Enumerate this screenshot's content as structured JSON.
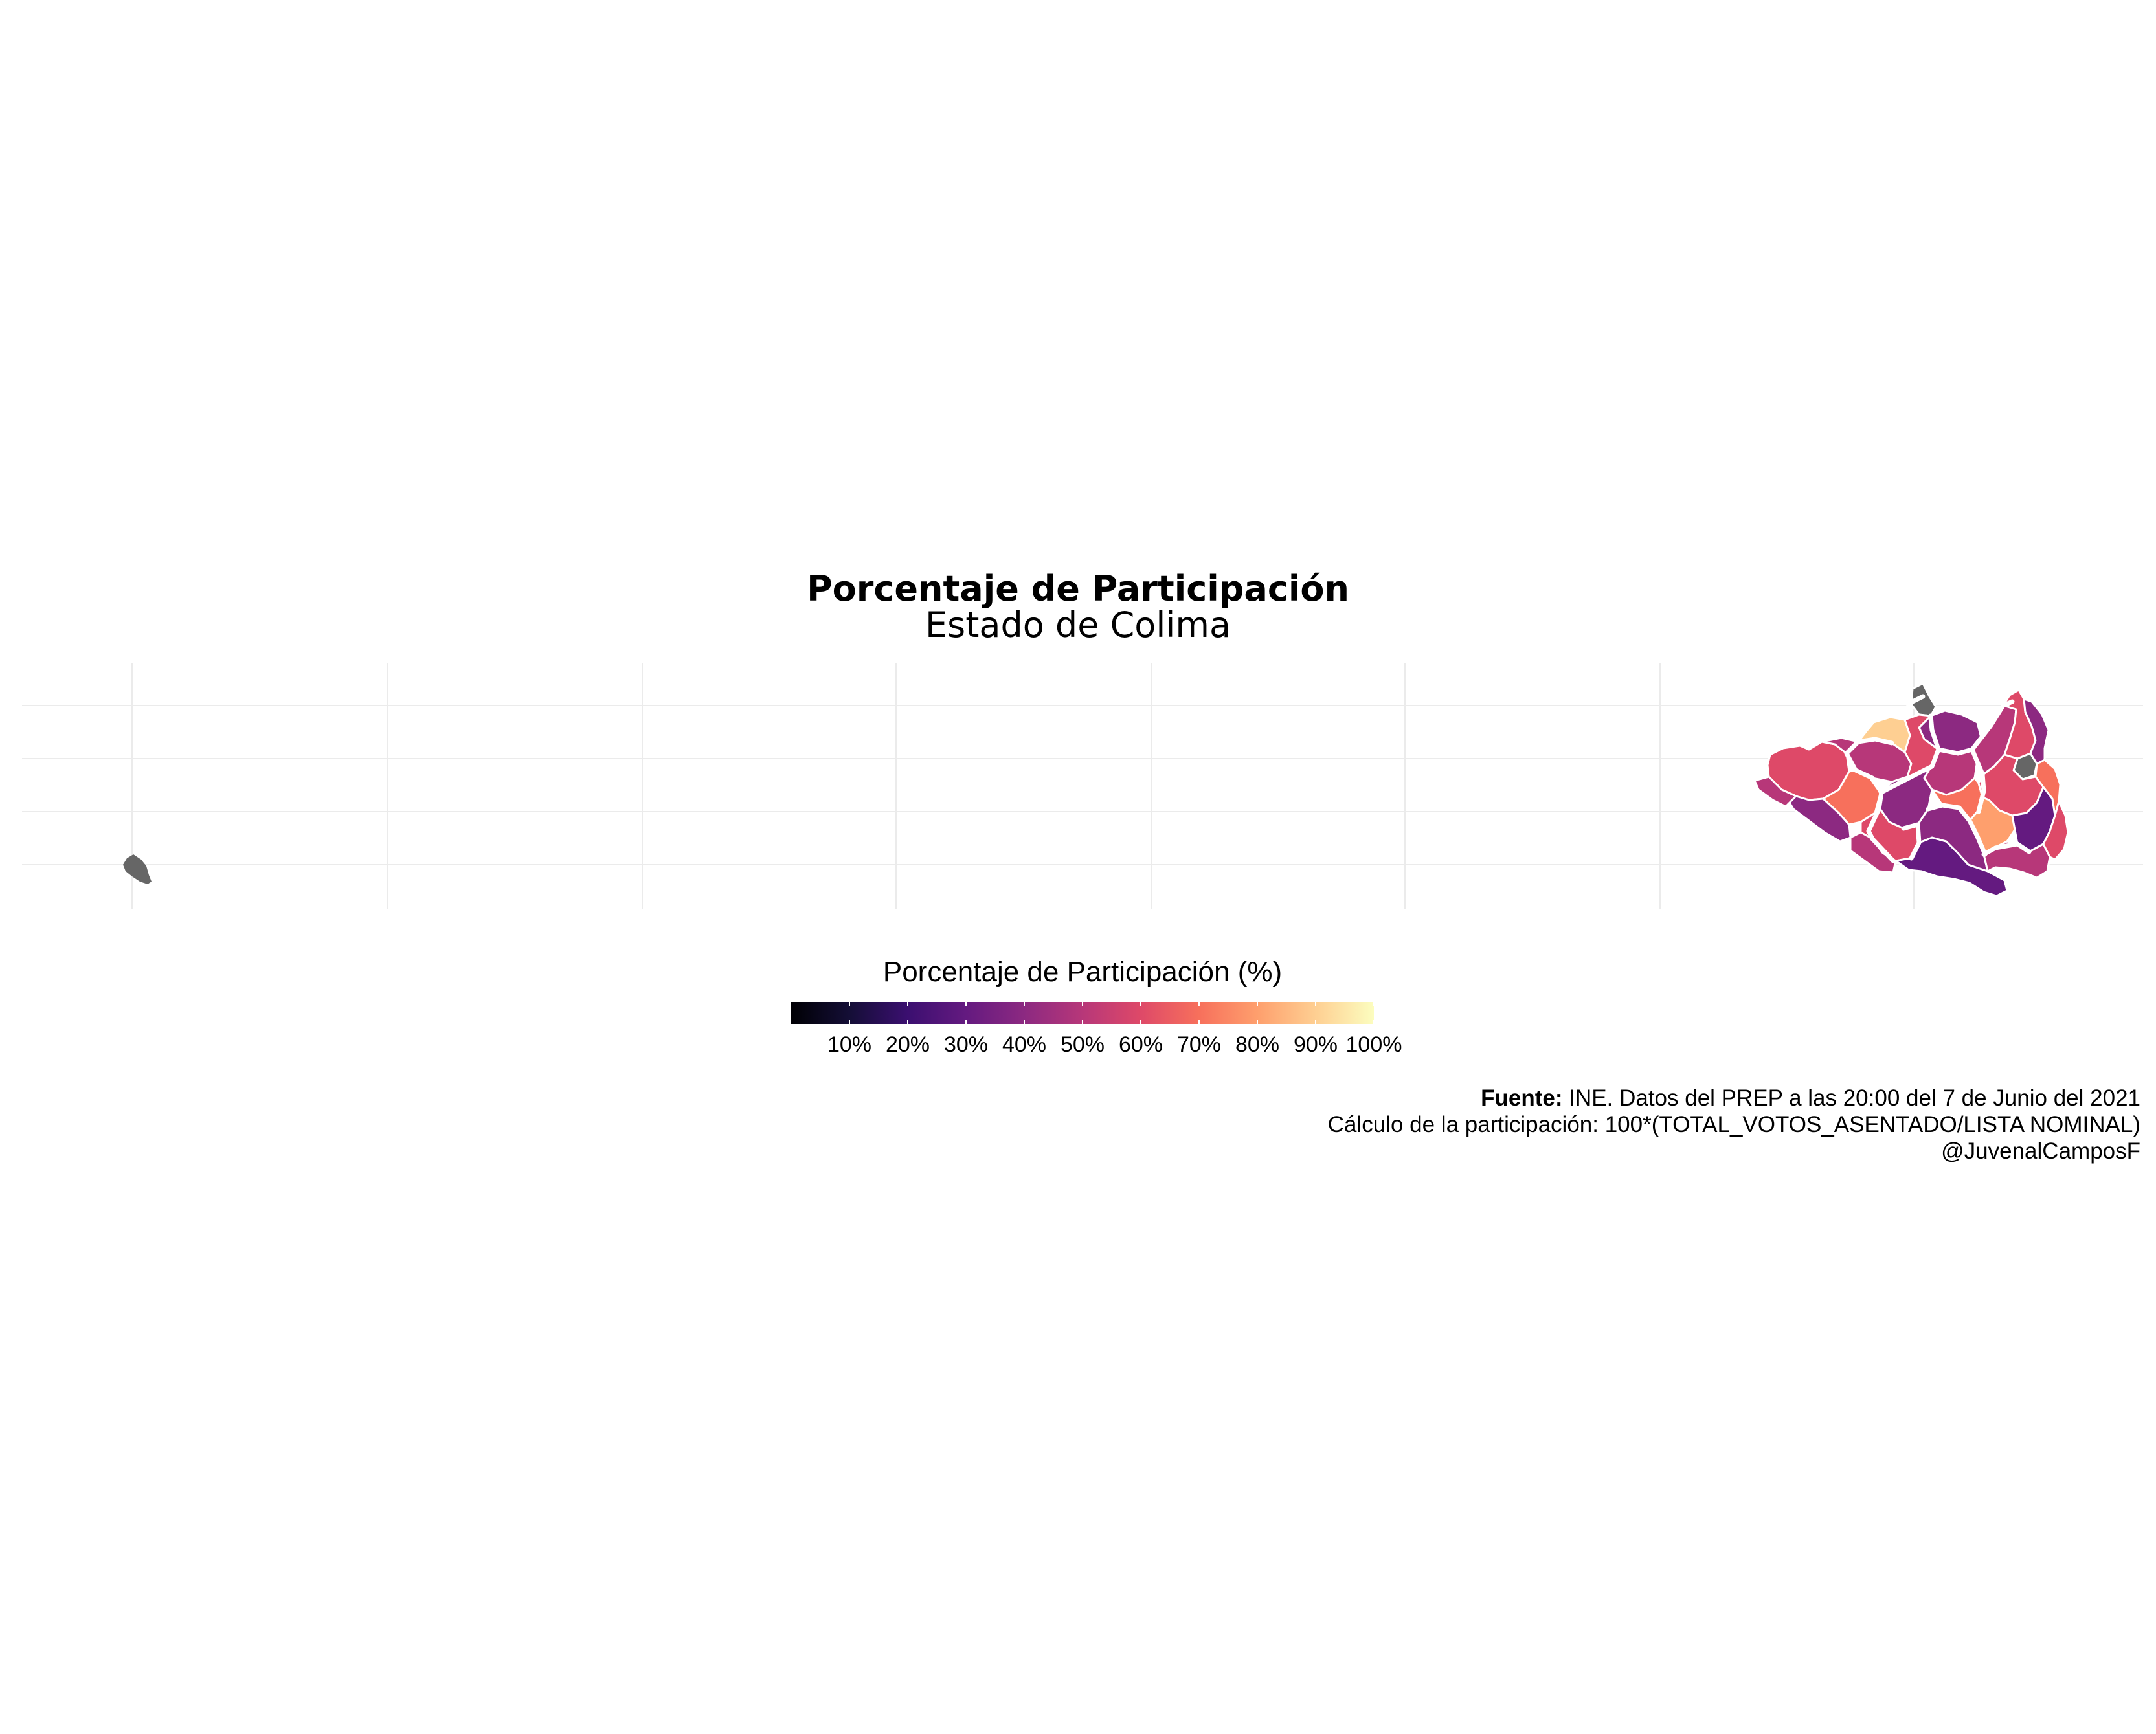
{
  "title": "Porcentaje de Participación",
  "subtitle": "Estado de Colima",
  "legend": {
    "title": "Porcentaje de Participación (%)",
    "ticks": [
      "10%",
      "20%",
      "30%",
      "40%",
      "50%",
      "60%",
      "70%",
      "80%",
      "90%",
      "100%"
    ],
    "range": [
      0,
      100
    ],
    "palette": [
      "#000004",
      "#140e36",
      "#3b0f70",
      "#641a80",
      "#8c2981",
      "#b73779",
      "#de4968",
      "#f7705c",
      "#fe9f6d",
      "#fecf92",
      "#fcfdbf"
    ]
  },
  "caption": {
    "source_label": "Fuente:",
    "source_text": " INE. Datos del PREP a las 20:00 del 7 de Junio del 2021",
    "calc_text": "Cálculo de la participación: 100*(TOTAL_VOTOS_ASENTADO/LISTA NOMINAL)",
    "author": "@JuvenalCamposF"
  },
  "map": {
    "no_data_color": "#666666",
    "border_color": "#ffffff",
    "grid_color": "#ebebeb"
  }
}
